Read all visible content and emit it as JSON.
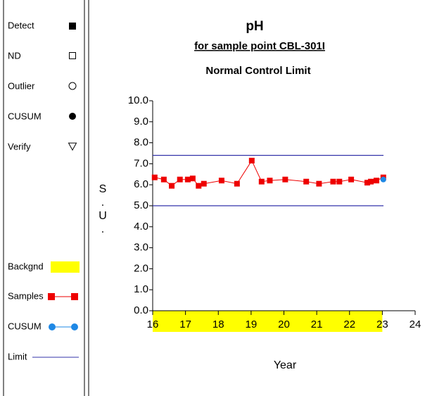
{
  "chart_data": {
    "type": "line",
    "title": "pH",
    "subtitle": "for sample point CBL-301I",
    "limit_title": "Normal Control Limit",
    "xlabel": "Year",
    "ylabel": "S.U.",
    "xlim": [
      16,
      24
    ],
    "xticks": [
      16,
      17,
      18,
      19,
      20,
      21,
      22,
      23,
      24
    ],
    "ylim": [
      0,
      10
    ],
    "yticks": [
      {
        "value": 0,
        "label": "0.0"
      },
      {
        "value": 1,
        "label": "1.0"
      },
      {
        "value": 2,
        "label": "2.0"
      },
      {
        "value": 3,
        "label": "3.0"
      },
      {
        "value": 4,
        "label": "4.0"
      },
      {
        "value": 5,
        "label": "5.0"
      },
      {
        "value": 6,
        "label": "6.0"
      },
      {
        "value": 7,
        "label": "7.0"
      },
      {
        "value": 8,
        "label": "8.0"
      },
      {
        "value": 9,
        "label": "9.0"
      },
      {
        "value": 10,
        "label": "10.0"
      }
    ],
    "symbol_legend": [
      "Detect",
      "ND",
      "Outlier",
      "CUSUM",
      "Verify"
    ],
    "background_name": "Backgnd",
    "background_x": [
      16,
      23
    ],
    "background_color": "#ffff00",
    "limit_name": "Limit",
    "limit_color": "#3333aa",
    "limits": [
      7.4,
      5.0
    ],
    "series": [
      {
        "name": "Samples",
        "color": "#ee0000",
        "x": [
          16.06,
          16.34,
          16.58,
          16.83,
          17.07,
          17.22,
          17.4,
          17.56,
          18.1,
          18.57,
          19.02,
          19.32,
          19.57,
          20.04,
          20.68,
          21.07,
          21.5,
          21.69,
          22.05,
          22.54,
          22.65,
          22.82,
          23.03
        ],
        "values": [
          6.35,
          6.25,
          5.95,
          6.25,
          6.25,
          6.3,
          5.95,
          6.05,
          6.2,
          6.05,
          7.15,
          6.15,
          6.2,
          6.25,
          6.15,
          6.05,
          6.15,
          6.15,
          6.25,
          6.1,
          6.15,
          6.2,
          6.35
        ]
      },
      {
        "name": "CUSUM",
        "color": "#1e88e5",
        "x": [
          23.03
        ],
        "values": [
          6.25
        ]
      }
    ]
  }
}
